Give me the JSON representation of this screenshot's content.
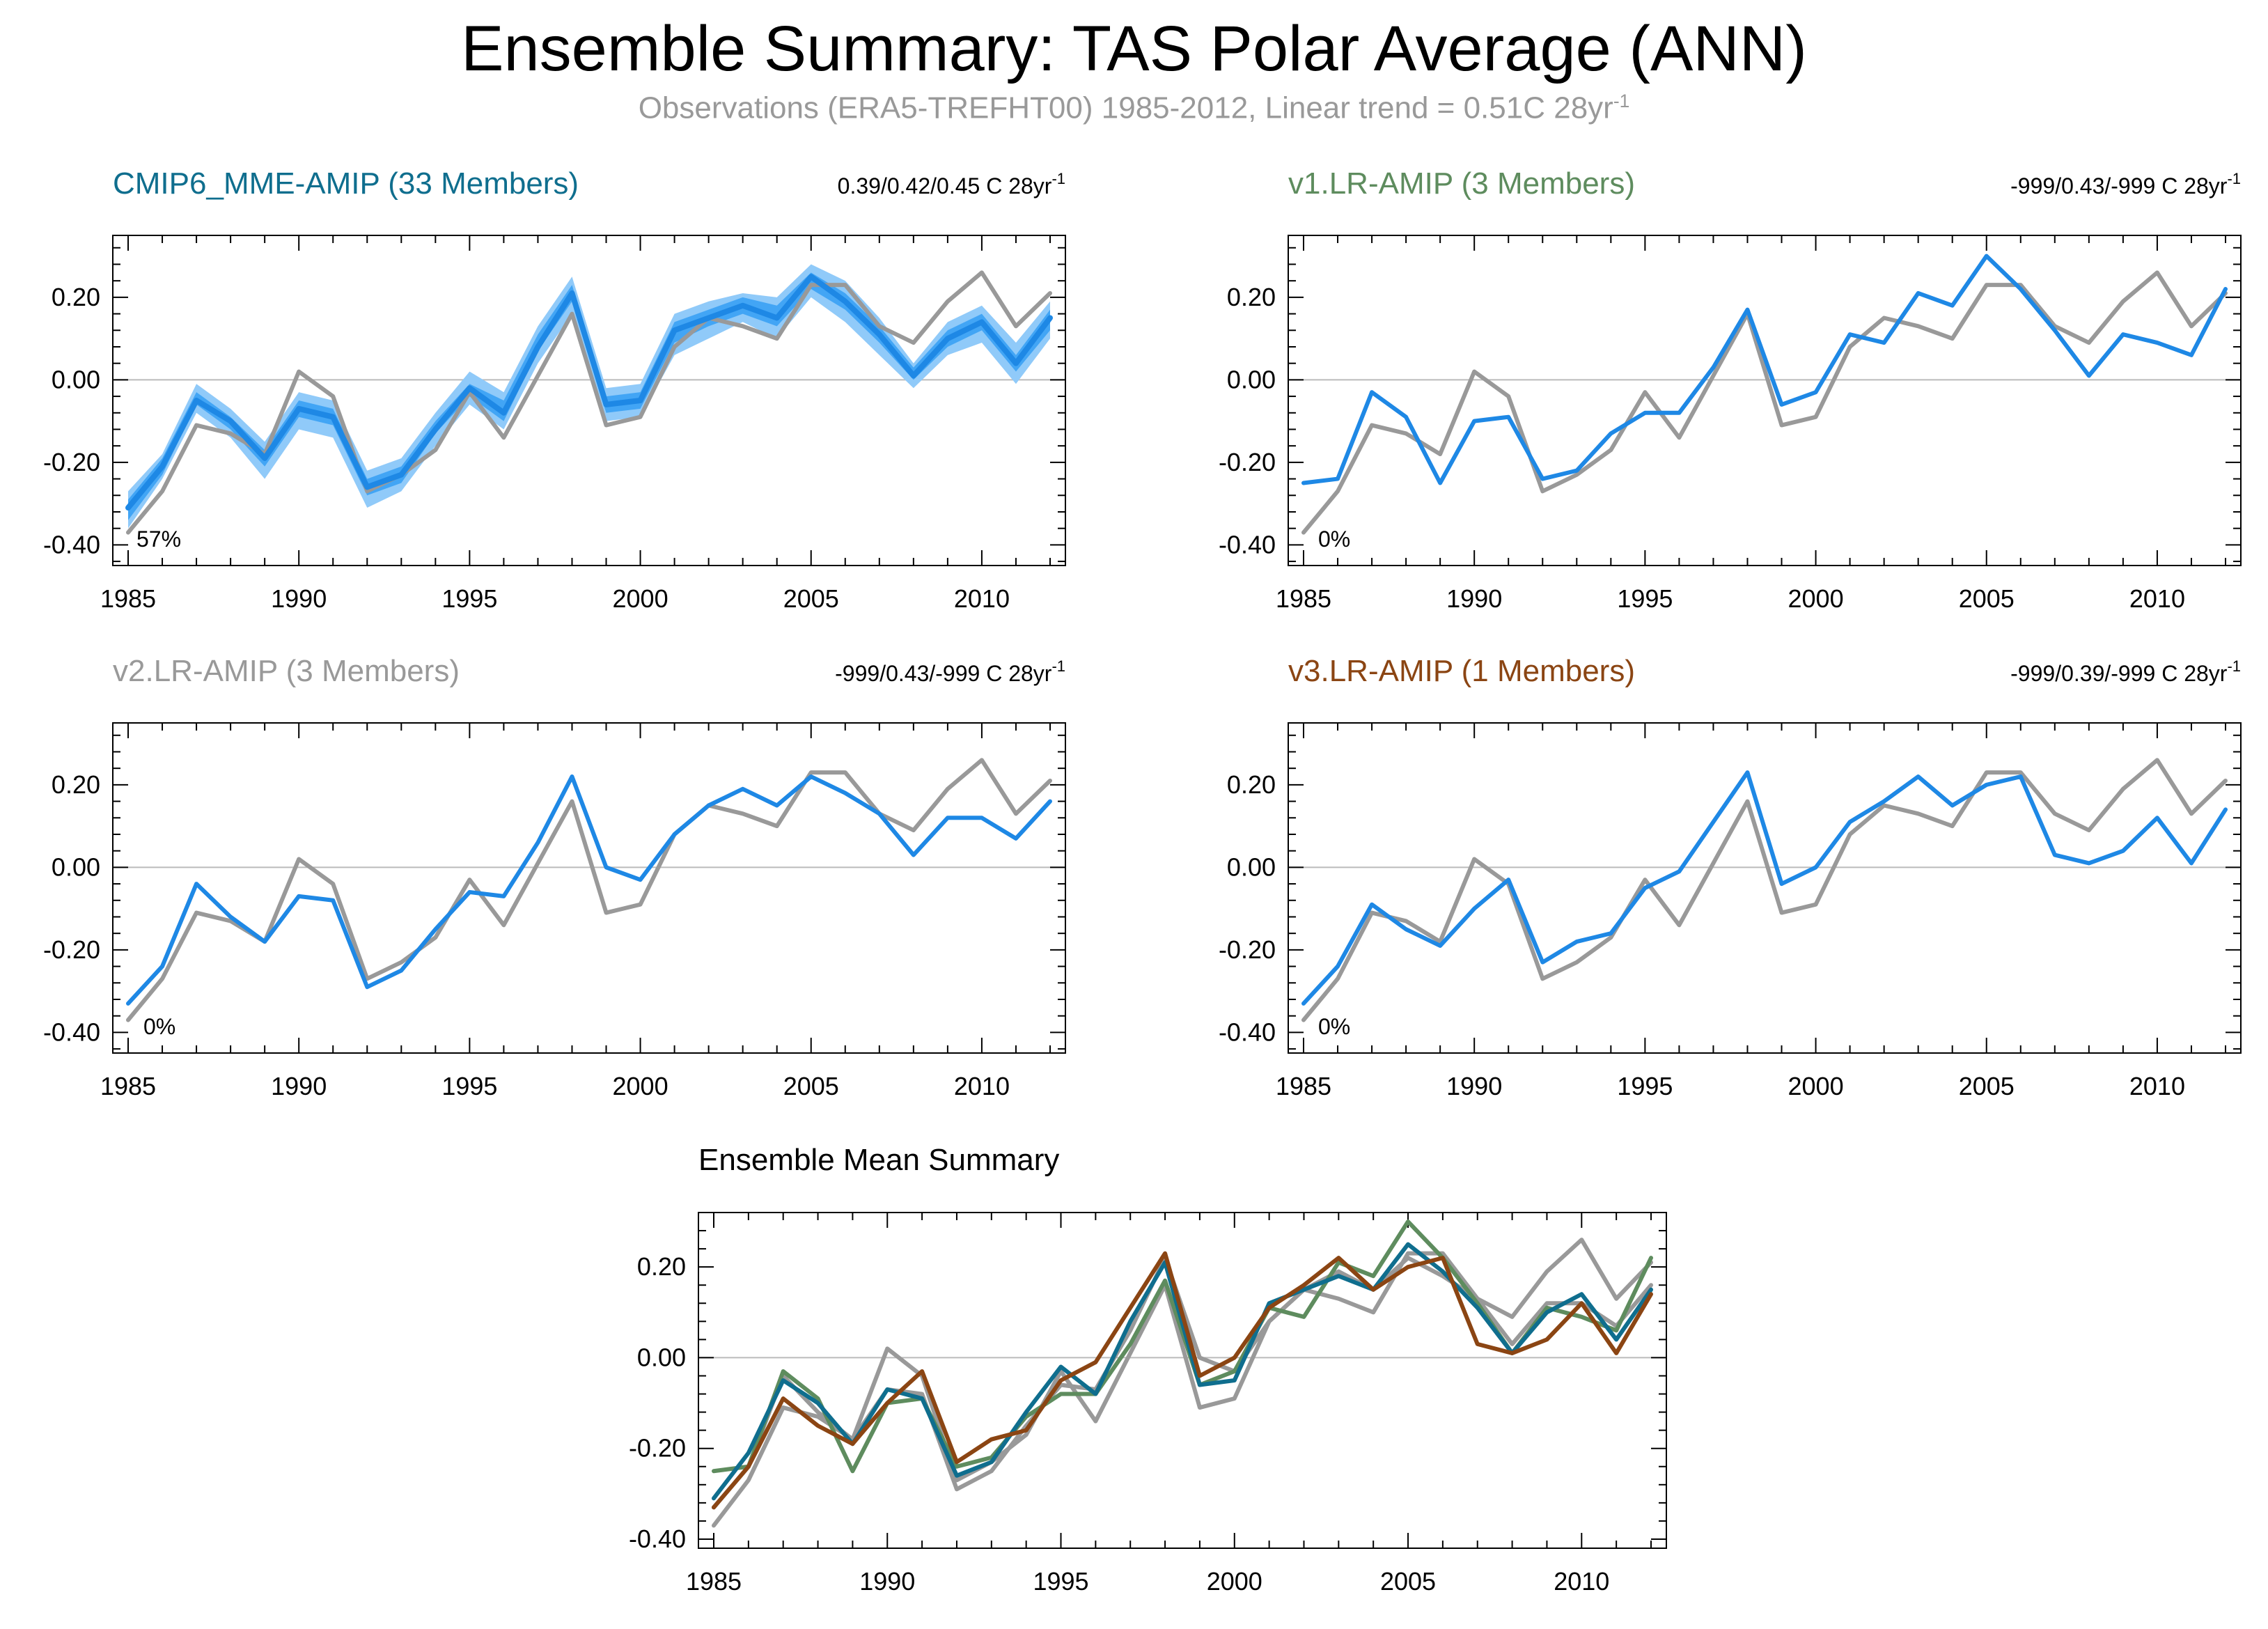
{
  "figure": {
    "title": "Ensemble Summary: TAS Polar Average (ANN)",
    "subtitle_main": "Observations (ERA5-TREFHT00) 1985-2012, Linear trend = 0.51C 28yr",
    "subtitle_sup": "-1"
  },
  "colors": {
    "obs": "#999999",
    "model": "#1e88e5",
    "band_outer": "#90caf9",
    "band_inner": "#42a5f5",
    "cmip6": "#0f6e8e",
    "v1": "#5e8c5e",
    "v2": "#999999",
    "v3": "#8b4513",
    "zero_line": "#bbbbbb"
  },
  "chart_data": [
    {
      "type": "line",
      "title": "CMIP6_MME-AMIP (33 Members)",
      "title_color": "#0f6e8e",
      "stats_main": "0.39/0.42/0.45 C 28yr",
      "stats_sup": "-1",
      "percent": "57%",
      "x": [
        1985,
        1986,
        1987,
        1988,
        1989,
        1990,
        1991,
        1992,
        1993,
        1994,
        1995,
        1996,
        1997,
        1998,
        1999,
        2000,
        2001,
        2002,
        2003,
        2004,
        2005,
        2006,
        2007,
        2008,
        2009,
        2010,
        2011,
        2012
      ],
      "ylim": [
        -0.45,
        0.35
      ],
      "yticks": [
        -0.4,
        -0.2,
        0.0,
        0.2
      ],
      "ytick_labels": [
        "-0.40",
        "-0.20",
        "0.00",
        "0.20"
      ],
      "xticks": [
        1985,
        1990,
        1995,
        2000,
        2005,
        2010
      ],
      "xtick_labels": [
        "1985",
        "1990",
        "1995",
        "2000",
        "2005",
        "2010"
      ],
      "band_outer": {
        "low": [
          -0.36,
          -0.24,
          -0.08,
          -0.14,
          -0.24,
          -0.12,
          -0.14,
          -0.31,
          -0.27,
          -0.16,
          -0.06,
          -0.12,
          0.04,
          0.16,
          -0.1,
          -0.09,
          0.06,
          0.1,
          0.14,
          0.1,
          0.2,
          0.14,
          0.06,
          -0.02,
          0.06,
          0.09,
          -0.01,
          0.1
        ],
        "high": [
          -0.27,
          -0.18,
          -0.01,
          -0.07,
          -0.15,
          -0.03,
          -0.05,
          -0.22,
          -0.19,
          -0.08,
          0.02,
          -0.03,
          0.13,
          0.25,
          -0.02,
          -0.01,
          0.16,
          0.19,
          0.21,
          0.2,
          0.28,
          0.24,
          0.15,
          0.04,
          0.14,
          0.18,
          0.09,
          0.19
        ]
      },
      "band_inner": {
        "low": [
          -0.34,
          -0.23,
          -0.06,
          -0.12,
          -0.21,
          -0.09,
          -0.11,
          -0.28,
          -0.25,
          -0.13,
          -0.04,
          -0.1,
          0.07,
          0.19,
          -0.08,
          -0.07,
          0.09,
          0.13,
          0.16,
          0.13,
          0.22,
          0.17,
          0.09,
          0.0,
          0.08,
          0.12,
          0.02,
          0.12
        ],
        "high": [
          -0.29,
          -0.19,
          -0.03,
          -0.09,
          -0.17,
          -0.05,
          -0.07,
          -0.24,
          -0.21,
          -0.1,
          -0.01,
          -0.05,
          0.11,
          0.23,
          -0.04,
          -0.03,
          0.14,
          0.17,
          0.2,
          0.18,
          0.26,
          0.21,
          0.13,
          0.03,
          0.12,
          0.16,
          0.06,
          0.17
        ]
      },
      "series": [
        {
          "key": "obs",
          "values": [
            -0.37,
            -0.27,
            -0.11,
            -0.13,
            -0.18,
            0.02,
            -0.04,
            -0.27,
            -0.23,
            -0.17,
            -0.03,
            -0.14,
            0.01,
            0.16,
            -0.11,
            -0.09,
            0.08,
            0.15,
            0.13,
            0.1,
            0.23,
            0.23,
            0.13,
            0.09,
            0.19,
            0.26,
            0.13,
            0.21
          ]
        },
        {
          "key": "model",
          "values": [
            -0.31,
            -0.21,
            -0.05,
            -0.1,
            -0.19,
            -0.07,
            -0.09,
            -0.26,
            -0.23,
            -0.12,
            -0.02,
            -0.08,
            0.08,
            0.21,
            -0.06,
            -0.05,
            0.12,
            0.15,
            0.18,
            0.15,
            0.25,
            0.19,
            0.11,
            0.01,
            0.1,
            0.14,
            0.04,
            0.15
          ]
        }
      ]
    },
    {
      "type": "line",
      "title": "v1.LR-AMIP (3 Members)",
      "title_color": "#5e8c5e",
      "stats_main": "-999/0.43/-999 C 28yr",
      "stats_sup": "-1",
      "percent": "0%",
      "x": [
        1985,
        1986,
        1987,
        1988,
        1989,
        1990,
        1991,
        1992,
        1993,
        1994,
        1995,
        1996,
        1997,
        1998,
        1999,
        2000,
        2001,
        2002,
        2003,
        2004,
        2005,
        2006,
        2007,
        2008,
        2009,
        2010,
        2011,
        2012
      ],
      "ylim": [
        -0.45,
        0.35
      ],
      "yticks": [
        -0.4,
        -0.2,
        0.0,
        0.2
      ],
      "ytick_labels": [
        "-0.40",
        "-0.20",
        "0.00",
        "0.20"
      ],
      "xticks": [
        1985,
        1990,
        1995,
        2000,
        2005,
        2010
      ],
      "xtick_labels": [
        "1985",
        "1990",
        "1995",
        "2000",
        "2005",
        "2010"
      ],
      "series": [
        {
          "key": "obs",
          "values": [
            -0.37,
            -0.27,
            -0.11,
            -0.13,
            -0.18,
            0.02,
            -0.04,
            -0.27,
            -0.23,
            -0.17,
            -0.03,
            -0.14,
            0.01,
            0.16,
            -0.11,
            -0.09,
            0.08,
            0.15,
            0.13,
            0.1,
            0.23,
            0.23,
            0.13,
            0.09,
            0.19,
            0.26,
            0.13,
            0.21
          ]
        },
        {
          "key": "model",
          "values": [
            -0.25,
            -0.24,
            -0.03,
            -0.09,
            -0.25,
            -0.1,
            -0.09,
            -0.24,
            -0.22,
            -0.13,
            -0.08,
            -0.08,
            0.03,
            0.17,
            -0.06,
            -0.03,
            0.11,
            0.09,
            0.21,
            0.18,
            0.3,
            0.22,
            0.12,
            0.01,
            0.11,
            0.09,
            0.06,
            0.22
          ]
        }
      ]
    },
    {
      "type": "line",
      "title": "v2.LR-AMIP (3 Members)",
      "title_color": "#999999",
      "stats_main": "-999/0.43/-999 C 28yr",
      "stats_sup": "-1",
      "percent": "0%",
      "x": [
        1985,
        1986,
        1987,
        1988,
        1989,
        1990,
        1991,
        1992,
        1993,
        1994,
        1995,
        1996,
        1997,
        1998,
        1999,
        2000,
        2001,
        2002,
        2003,
        2004,
        2005,
        2006,
        2007,
        2008,
        2009,
        2010,
        2011,
        2012
      ],
      "ylim": [
        -0.45,
        0.35
      ],
      "yticks": [
        -0.4,
        -0.2,
        0.0,
        0.2
      ],
      "ytick_labels": [
        "-0.40",
        "-0.20",
        "0.00",
        "0.20"
      ],
      "xticks": [
        1985,
        1990,
        1995,
        2000,
        2005,
        2010
      ],
      "xtick_labels": [
        "1985",
        "1990",
        "1995",
        "2000",
        "2005",
        "2010"
      ],
      "series": [
        {
          "key": "obs",
          "values": [
            -0.37,
            -0.27,
            -0.11,
            -0.13,
            -0.18,
            0.02,
            -0.04,
            -0.27,
            -0.23,
            -0.17,
            -0.03,
            -0.14,
            0.01,
            0.16,
            -0.11,
            -0.09,
            0.08,
            0.15,
            0.13,
            0.1,
            0.23,
            0.23,
            0.13,
            0.09,
            0.19,
            0.26,
            0.13,
            0.21
          ]
        },
        {
          "key": "model",
          "values": [
            -0.33,
            -0.24,
            -0.04,
            -0.12,
            -0.18,
            -0.07,
            -0.08,
            -0.29,
            -0.25,
            -0.15,
            -0.06,
            -0.07,
            0.06,
            0.22,
            0.0,
            -0.03,
            0.08,
            0.15,
            0.19,
            0.15,
            0.22,
            0.18,
            0.13,
            0.03,
            0.12,
            0.12,
            0.07,
            0.16
          ]
        }
      ]
    },
    {
      "type": "line",
      "title": "v3.LR-AMIP (1 Members)",
      "title_color": "#8b4513",
      "stats_main": "-999/0.39/-999 C 28yr",
      "stats_sup": "-1",
      "percent": "0%",
      "x": [
        1985,
        1986,
        1987,
        1988,
        1989,
        1990,
        1991,
        1992,
        1993,
        1994,
        1995,
        1996,
        1997,
        1998,
        1999,
        2000,
        2001,
        2002,
        2003,
        2004,
        2005,
        2006,
        2007,
        2008,
        2009,
        2010,
        2011,
        2012
      ],
      "ylim": [
        -0.45,
        0.35
      ],
      "yticks": [
        -0.4,
        -0.2,
        0.0,
        0.2
      ],
      "ytick_labels": [
        "-0.40",
        "-0.20",
        "0.00",
        "0.20"
      ],
      "xticks": [
        1985,
        1990,
        1995,
        2000,
        2005,
        2010
      ],
      "xtick_labels": [
        "1985",
        "1990",
        "1995",
        "2000",
        "2005",
        "2010"
      ],
      "series": [
        {
          "key": "obs",
          "values": [
            -0.37,
            -0.27,
            -0.11,
            -0.13,
            -0.18,
            0.02,
            -0.04,
            -0.27,
            -0.23,
            -0.17,
            -0.03,
            -0.14,
            0.01,
            0.16,
            -0.11,
            -0.09,
            0.08,
            0.15,
            0.13,
            0.1,
            0.23,
            0.23,
            0.13,
            0.09,
            0.19,
            0.26,
            0.13,
            0.21
          ]
        },
        {
          "key": "model",
          "values": [
            -0.33,
            -0.24,
            -0.09,
            -0.15,
            -0.19,
            -0.1,
            -0.03,
            -0.23,
            -0.18,
            -0.16,
            -0.05,
            -0.01,
            0.11,
            0.23,
            -0.04,
            0.0,
            0.11,
            0.16,
            0.22,
            0.15,
            0.2,
            0.22,
            0.03,
            0.01,
            0.04,
            0.12,
            0.01,
            0.14
          ]
        }
      ]
    },
    {
      "type": "line",
      "title": "Ensemble Mean Summary",
      "title_color": "#000000",
      "x": [
        1985,
        1986,
        1987,
        1988,
        1989,
        1990,
        1991,
        1992,
        1993,
        1994,
        1995,
        1996,
        1997,
        1998,
        1999,
        2000,
        2001,
        2002,
        2003,
        2004,
        2005,
        2006,
        2007,
        2008,
        2009,
        2010,
        2011,
        2012
      ],
      "ylim": [
        -0.42,
        0.32
      ],
      "yticks": [
        -0.4,
        -0.2,
        0.0,
        0.2
      ],
      "ytick_labels": [
        "-0.40",
        "-0.20",
        "0.00",
        "0.20"
      ],
      "xticks": [
        1985,
        1990,
        1995,
        2000,
        2005,
        2010
      ],
      "xtick_labels": [
        "1985",
        "1990",
        "1995",
        "2000",
        "2005",
        "2010"
      ],
      "series": [
        {
          "key": "obs",
          "values": [
            -0.37,
            -0.27,
            -0.11,
            -0.13,
            -0.18,
            0.02,
            -0.04,
            -0.27,
            -0.23,
            -0.17,
            -0.03,
            -0.14,
            0.01,
            0.16,
            -0.11,
            -0.09,
            0.08,
            0.15,
            0.13,
            0.1,
            0.23,
            0.23,
            0.13,
            0.09,
            0.19,
            0.26,
            0.13,
            0.21
          ]
        },
        {
          "key": "v2",
          "values": [
            -0.33,
            -0.24,
            -0.04,
            -0.12,
            -0.18,
            -0.07,
            -0.08,
            -0.29,
            -0.25,
            -0.15,
            -0.06,
            -0.07,
            0.06,
            0.22,
            0.0,
            -0.03,
            0.08,
            0.15,
            0.19,
            0.15,
            0.22,
            0.18,
            0.13,
            0.03,
            0.12,
            0.12,
            0.07,
            0.16
          ]
        },
        {
          "key": "v1",
          "values": [
            -0.25,
            -0.24,
            -0.03,
            -0.09,
            -0.25,
            -0.1,
            -0.09,
            -0.24,
            -0.22,
            -0.13,
            -0.08,
            -0.08,
            0.03,
            0.17,
            -0.06,
            -0.03,
            0.11,
            0.09,
            0.21,
            0.18,
            0.3,
            0.22,
            0.12,
            0.01,
            0.11,
            0.09,
            0.06,
            0.22
          ]
        },
        {
          "key": "cmip6",
          "values": [
            -0.31,
            -0.21,
            -0.05,
            -0.1,
            -0.19,
            -0.07,
            -0.09,
            -0.26,
            -0.23,
            -0.12,
            -0.02,
            -0.08,
            0.08,
            0.21,
            -0.06,
            -0.05,
            0.12,
            0.15,
            0.18,
            0.15,
            0.25,
            0.19,
            0.11,
            0.01,
            0.1,
            0.14,
            0.04,
            0.15
          ]
        },
        {
          "key": "v3",
          "values": [
            -0.33,
            -0.24,
            -0.09,
            -0.15,
            -0.19,
            -0.1,
            -0.03,
            -0.23,
            -0.18,
            -0.16,
            -0.05,
            -0.01,
            0.11,
            0.23,
            -0.04,
            0.0,
            0.11,
            0.16,
            0.22,
            0.15,
            0.2,
            0.22,
            0.03,
            0.01,
            0.04,
            0.12,
            0.01,
            0.14
          ]
        }
      ]
    }
  ]
}
